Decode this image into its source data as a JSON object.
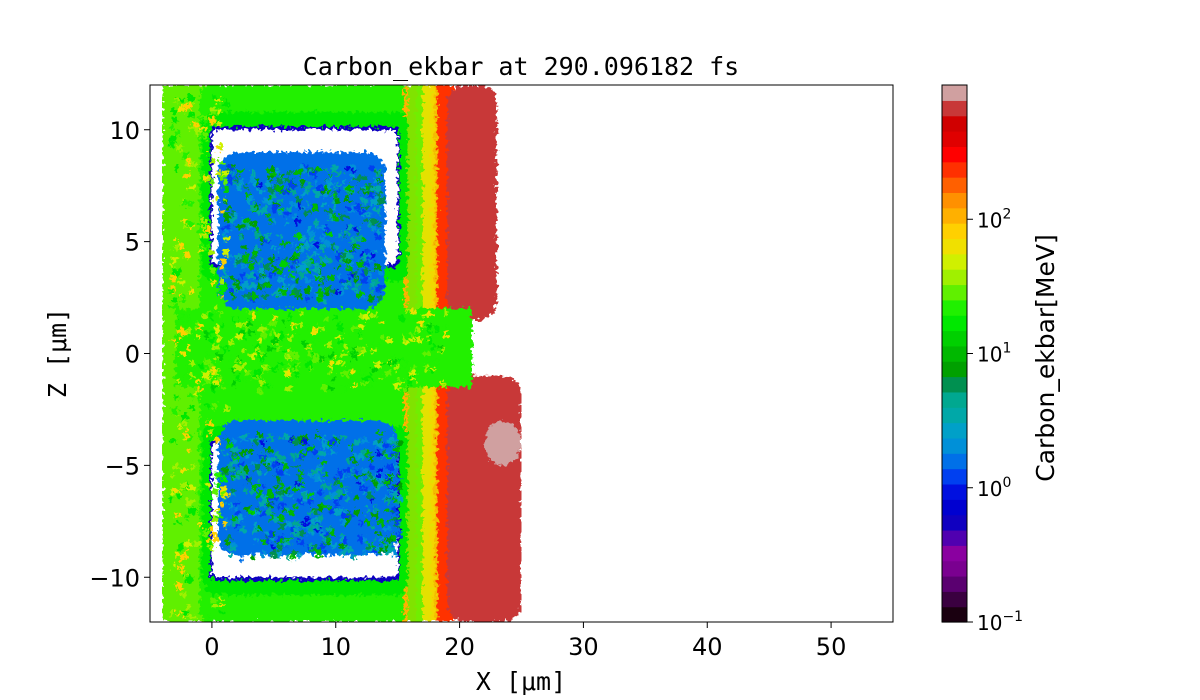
{
  "chart_data": {
    "type": "heatmap",
    "title": "Carbon_ekbar at 290.096182 fs",
    "xlabel": "X  [μm]",
    "ylabel": "Z  [μm]",
    "xlim": [
      -5,
      55
    ],
    "ylim": [
      -12,
      12
    ],
    "x_ticks": [
      0,
      10,
      20,
      30,
      40,
      50
    ],
    "y_ticks": [
      10,
      5,
      0,
      -5,
      -10
    ],
    "x_tick_labels": [
      "0",
      "10",
      "20",
      "30",
      "40",
      "50"
    ],
    "y_tick_labels": [
      "10",
      "5",
      "0",
      "−5",
      "−10"
    ],
    "grid": false,
    "colorbar": {
      "label": "Carbon_ekbar[MeV]",
      "scale": "log",
      "range": [
        0.1,
        1000
      ],
      "ticks": [
        {
          "value": 0.1,
          "base": "10",
          "exp": "−1"
        },
        {
          "value": 1,
          "base": "10",
          "exp": "0"
        },
        {
          "value": 10,
          "base": "10",
          "exp": "1"
        },
        {
          "value": 100,
          "base": "10",
          "exp": "2"
        }
      ],
      "colors": [
        "#1a0010",
        "#3a0040",
        "#5a0070",
        "#7a0090",
        "#8a00a0",
        "#5000b0",
        "#1000c0",
        "#0000d0",
        "#0010e0",
        "#0040f0",
        "#0070e8",
        "#0090d8",
        "#00a0c8",
        "#00a8a8",
        "#00a890",
        "#009050",
        "#00a000",
        "#00b800",
        "#00d000",
        "#00e800",
        "#20f000",
        "#60f000",
        "#a0f000",
        "#d0f000",
        "#f0e000",
        "#ffd000",
        "#ffb000",
        "#ff9000",
        "#ff6000",
        "#ff3000",
        "#ff0000",
        "#e00000",
        "#d00000",
        "#c83838",
        "#d0a0a0"
      ]
    },
    "regions": [
      {
        "name": "left-ejecta-band",
        "x": [
          -4,
          1
        ],
        "z": [
          -12,
          12
        ],
        "mev": 30
      },
      {
        "name": "wall-green-halo",
        "x": [
          -1,
          17
        ],
        "z": [
          -12,
          12
        ],
        "mev": 40
      },
      {
        "name": "wall-yellow",
        "x": [
          15.5,
          18
        ],
        "z": [
          -12,
          12
        ],
        "mev": 120
      },
      {
        "name": "wall-orange",
        "x": [
          17.5,
          19.5
        ],
        "z": [
          -12,
          12
        ],
        "mev": 250
      },
      {
        "name": "front-red-lobe-upper",
        "x": [
          19,
          23
        ],
        "z": [
          1.5,
          12
        ],
        "mev": 600
      },
      {
        "name": "front-red-lobe-lower",
        "x": [
          19,
          25
        ],
        "z": [
          -12,
          -1
        ],
        "mev": 600
      },
      {
        "name": "hot-spot",
        "x": [
          22,
          25
        ],
        "z": [
          -5,
          -3
        ],
        "mev": 900
      },
      {
        "name": "upper-cavity",
        "x": [
          0,
          15
        ],
        "z": [
          4,
          10
        ],
        "mev": null
      },
      {
        "name": "lower-cavity",
        "x": [
          0,
          15
        ],
        "z": [
          -10,
          -4
        ],
        "mev": null
      },
      {
        "name": "upper-inner-blue",
        "x": [
          0.5,
          14
        ],
        "z": [
          2,
          9
        ],
        "mev": 2
      },
      {
        "name": "lower-inner-blue",
        "x": [
          0.5,
          15
        ],
        "z": [
          -9,
          -3
        ],
        "mev": 2
      }
    ]
  }
}
